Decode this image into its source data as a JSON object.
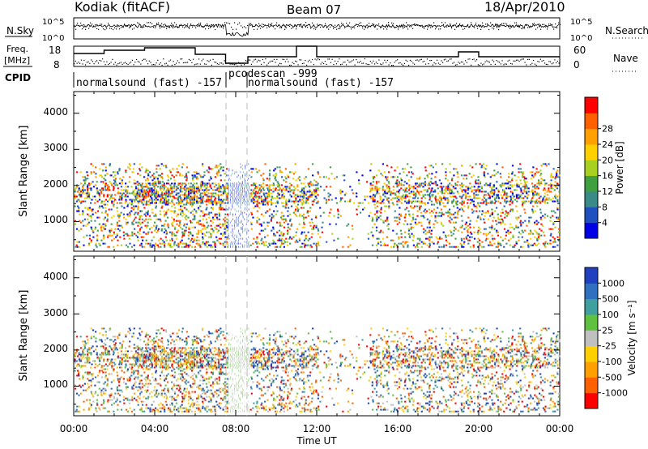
{
  "header": {
    "station": "Kodiak (fitACF)",
    "beam": "Beam 07",
    "date": "18/Apr/2010"
  },
  "noise_panel": {
    "left_label": "N.Sky",
    "right_label": "N.Search",
    "left_ticks": [
      "10^5",
      "10^0"
    ],
    "right_ticks": [
      "10^5",
      "10^0"
    ]
  },
  "freq_panel": {
    "left_label_line1": "Freq.",
    "left_label_line2": "[MHz]",
    "right_label": "Nave",
    "left_ticks": [
      "18",
      "8"
    ],
    "right_ticks": [
      "60",
      "0"
    ]
  },
  "cpid": {
    "label": "CPID",
    "segments": [
      {
        "text": "normalsound (fast) -157",
        "start_hour": 0,
        "end_hour": 7.5
      },
      {
        "text": "pcodescan -999",
        "start_hour": 7.5,
        "end_hour": 8.6
      },
      {
        "text": "normalsound (fast) -157",
        "start_hour": 8.6,
        "end_hour": 24
      }
    ]
  },
  "axes": {
    "ylabel": "Slant Range [km]",
    "xlabel": "Time UT",
    "x_ticks": [
      "00:00",
      "04:00",
      "08:00",
      "12:00",
      "16:00",
      "20:00",
      "00:00"
    ],
    "y_ticks": [
      "1000",
      "2000",
      "3000",
      "4000"
    ]
  },
  "power_colorbar": {
    "title": "Power [dB]",
    "ticks": [
      "4",
      "8",
      "12",
      "16",
      "20",
      "24",
      "28"
    ],
    "colors": [
      "#0000e6",
      "#2050c0",
      "#3a8a8a",
      "#40a040",
      "#a8d020",
      "#ffd000",
      "#ffa000",
      "#ff6000",
      "#ff0000"
    ]
  },
  "velocity_colorbar": {
    "title": "Velocity [m s⁻¹]",
    "ticks": [
      "1000",
      "500",
      "100",
      "25",
      "-25",
      "-100",
      "-500",
      "-1000"
    ],
    "colors": [
      "#2040c0",
      "#3070c0",
      "#40a0a0",
      "#60c040",
      "#c0c0c0",
      "#ffd000",
      "#ffa000",
      "#ff6000",
      "#ff0000"
    ]
  },
  "chart_data": {
    "type": "heatmap",
    "x_range_hours": [
      0,
      24
    ],
    "y_range_km": [
      180,
      4600
    ],
    "scan_mode_change_hours": [
      7.5,
      8.6
    ]
  }
}
